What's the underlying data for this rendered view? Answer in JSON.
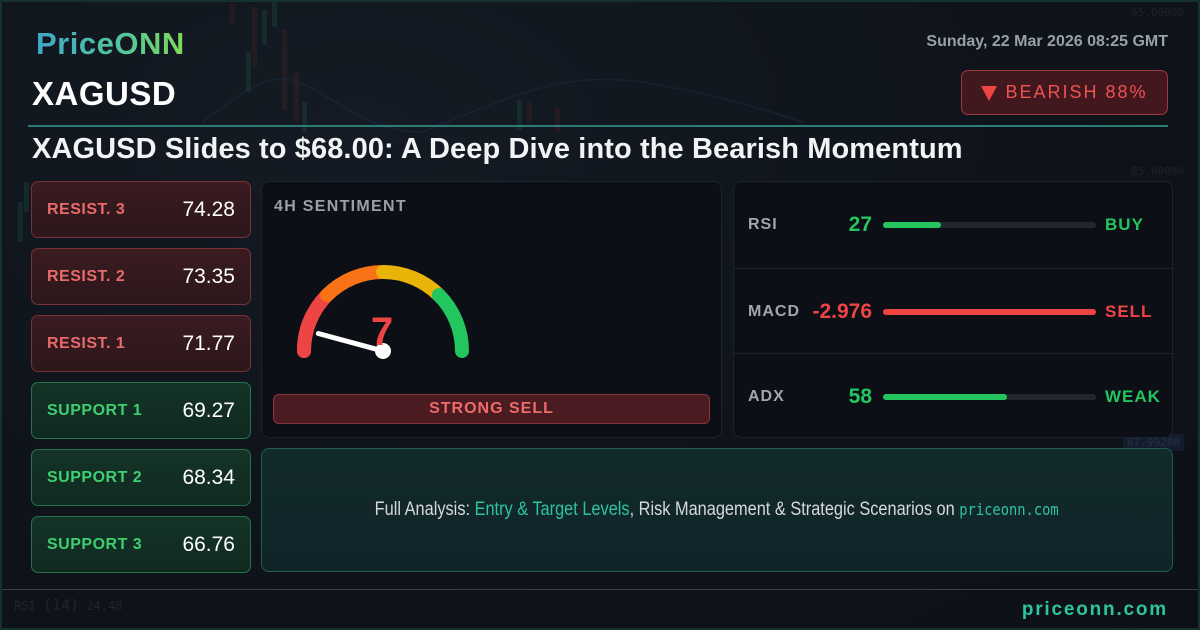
{
  "brand": {
    "logo_text": "PriceONN",
    "footer_site": "priceonn.com"
  },
  "header": {
    "symbol": "XAGUSD",
    "datetime": "Sunday, 22 Mar 2026 08:25 GMT",
    "bias_badge": {
      "icon": "down-triangle-icon",
      "label": "BEARISH 88%",
      "color": "#ef4444"
    },
    "headline": "XAGUSD Slides to $68.00: A Deep Dive into the Bearish Momentum"
  },
  "levels": [
    {
      "type": "resistance",
      "label": "RESIST. 3",
      "value": "74.28"
    },
    {
      "type": "resistance",
      "label": "RESIST. 2",
      "value": "73.35"
    },
    {
      "type": "resistance",
      "label": "RESIST. 1",
      "value": "71.77"
    },
    {
      "type": "support",
      "label": "SUPPORT 1",
      "value": "69.27"
    },
    {
      "type": "support",
      "label": "SUPPORT 2",
      "value": "68.34"
    },
    {
      "type": "support",
      "label": "SUPPORT 3",
      "value": "66.76"
    }
  ],
  "sentiment": {
    "title": "4H SENTIMENT",
    "gauge_value": "7",
    "gauge_max": 100,
    "gauge_colors": [
      "#ef4444",
      "#f97316",
      "#eab308",
      "#22c55e"
    ],
    "signal": "STRONG SELL"
  },
  "indicators": [
    {
      "name": "RSI",
      "value": "27",
      "fill_pct": 27,
      "signal": "BUY",
      "color": "#22c55e"
    },
    {
      "name": "MACD",
      "value": "-2.976",
      "fill_pct": 100,
      "signal": "SELL",
      "color": "#ef4444"
    },
    {
      "name": "ADX",
      "value": "58",
      "fill_pct": 58,
      "signal": "WEAK",
      "color": "#22c55e"
    }
  ],
  "cta": {
    "prefix": "Full Analysis: ",
    "highlight": "Entry & Target Levels",
    "middle": ", Risk Management & Strategic Scenarios on ",
    "site": "priceonn.com"
  },
  "background_chart": {
    "price_labels": [
      "95.00000",
      "85.00000"
    ],
    "current_price_tag": "67.99200",
    "rsi_label": "RSI",
    "rsi_period": "(14)",
    "rsi_value": "24.48"
  }
}
